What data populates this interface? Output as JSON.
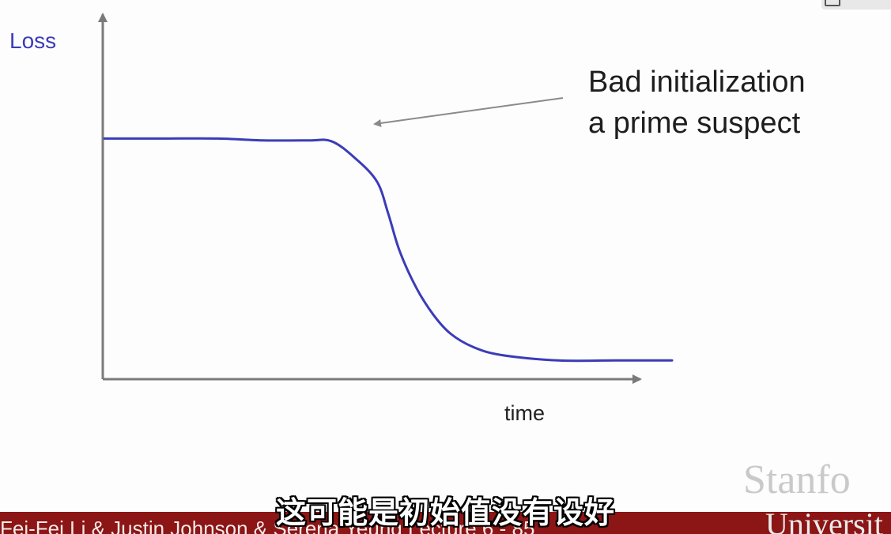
{
  "slide": {
    "annotation_line1": "Bad initialization",
    "annotation_line2": "a prime suspect",
    "watermark": "Stanfo",
    "university": "Universit",
    "footer_text": "Fei-Fei Li & Justin Johnson & Serena Yeung    Lecture 6 - 85",
    "subtitle": "这可能是初始值没有设好"
  },
  "colors": {
    "curve": "#3b3cb8",
    "axis": "#7a7a7a",
    "bar": "#8c1515"
  },
  "icons": {
    "corner": "player-icon"
  },
  "chart_data": {
    "type": "line",
    "title": "",
    "xlabel": "time",
    "ylabel": "Loss",
    "grid": false,
    "series": [
      {
        "x": [
          0,
          0.1,
          0.2,
          0.28,
          0.36,
          0.4,
          0.44,
          0.48,
          0.5,
          0.52,
          0.55,
          0.58,
          0.61,
          0.65,
          0.7,
          0.8,
          0.9,
          1.0
        ],
        "values": [
          0.9,
          0.9,
          0.9,
          0.893,
          0.893,
          0.89,
          0.83,
          0.74,
          0.62,
          0.48,
          0.34,
          0.24,
          0.17,
          0.12,
          0.09,
          0.07,
          0.07,
          0.07
        ]
      }
    ],
    "xlim": [
      0,
      1.1
    ],
    "ylim": [
      0,
      1.3
    ]
  }
}
